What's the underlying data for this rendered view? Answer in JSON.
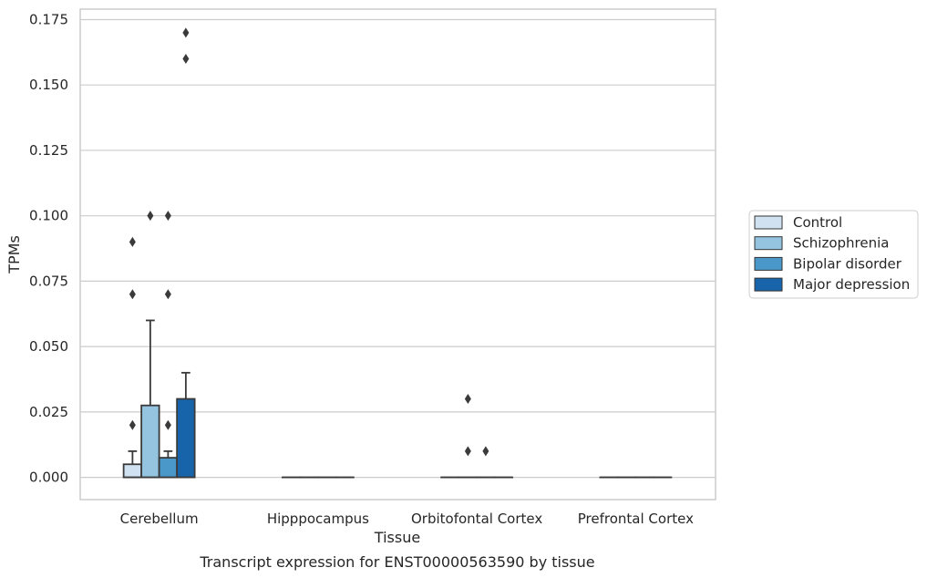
{
  "chart_data": {
    "type": "box",
    "title": "",
    "caption": "Transcript expression for ENST00000563590 by tissue",
    "xlabel": "Tissue",
    "ylabel": "TPMs",
    "ylim": [
      -0.0085,
      0.179
    ],
    "yticks": [
      "0.000",
      "0.025",
      "0.050",
      "0.075",
      "0.100",
      "0.125",
      "0.150",
      "0.175"
    ],
    "ytick_values": [
      0,
      0.025,
      0.05,
      0.075,
      0.1,
      0.125,
      0.15,
      0.175
    ],
    "grid": true,
    "legend_position": "right",
    "categories": [
      "Cerebellum",
      "Hipppocampus",
      "Orbitofontal Cortex",
      "Prefrontal Cortex"
    ],
    "series": [
      {
        "name": "Control",
        "color": "#d0e1f2",
        "boxes": [
          {
            "q1": 0,
            "median": 0,
            "q3": 0.005,
            "whisker_low": 0,
            "whisker_high": 0.01,
            "outliers": [
              0.02,
              0.07,
              0.09
            ]
          },
          {
            "q1": 0,
            "median": 0,
            "q3": 0,
            "whisker_low": 0,
            "whisker_high": 0,
            "outliers": []
          },
          {
            "q1": 0,
            "median": 0,
            "q3": 0,
            "whisker_low": 0,
            "whisker_high": 0,
            "outliers": []
          },
          {
            "q1": 0,
            "median": 0,
            "q3": 0,
            "whisker_low": 0,
            "whisker_high": 0,
            "outliers": []
          }
        ]
      },
      {
        "name": "Schizophrenia",
        "color": "#94c4df",
        "boxes": [
          {
            "q1": 0,
            "median": 0,
            "q3": 0.0275,
            "whisker_low": 0,
            "whisker_high": 0.06,
            "outliers": [
              0.1
            ]
          },
          {
            "q1": 0,
            "median": 0,
            "q3": 0,
            "whisker_low": 0,
            "whisker_high": 0,
            "outliers": []
          },
          {
            "q1": 0,
            "median": 0,
            "q3": 0,
            "whisker_low": 0,
            "whisker_high": 0,
            "outliers": [
              0.01,
              0.03
            ]
          },
          {
            "q1": 0,
            "median": 0,
            "q3": 0,
            "whisker_low": 0,
            "whisker_high": 0,
            "outliers": []
          }
        ]
      },
      {
        "name": "Bipolar disorder",
        "color": "#4a98c9",
        "boxes": [
          {
            "q1": 0,
            "median": 0,
            "q3": 0.0075,
            "whisker_low": 0,
            "whisker_high": 0.01,
            "outliers": [
              0.02,
              0.07,
              0.1
            ]
          },
          {
            "q1": 0,
            "median": 0,
            "q3": 0,
            "whisker_low": 0,
            "whisker_high": 0,
            "outliers": []
          },
          {
            "q1": 0,
            "median": 0,
            "q3": 0,
            "whisker_low": 0,
            "whisker_high": 0,
            "outliers": [
              0.01
            ]
          },
          {
            "q1": 0,
            "median": 0,
            "q3": 0,
            "whisker_low": 0,
            "whisker_high": 0,
            "outliers": []
          }
        ]
      },
      {
        "name": "Major depression",
        "color": "#1764ab",
        "boxes": [
          {
            "q1": 0,
            "median": 0,
            "q3": 0.03,
            "whisker_low": 0,
            "whisker_high": 0.04,
            "outliers": [
              0.16,
              0.17
            ]
          },
          {
            "q1": 0,
            "median": 0,
            "q3": 0,
            "whisker_low": 0,
            "whisker_high": 0,
            "outliers": []
          },
          {
            "q1": 0,
            "median": 0,
            "q3": 0,
            "whisker_low": 0,
            "whisker_high": 0,
            "outliers": []
          },
          {
            "q1": 0,
            "median": 0,
            "q3": 0,
            "whisker_low": 0,
            "whisker_high": 0,
            "outliers": []
          }
        ]
      }
    ]
  }
}
